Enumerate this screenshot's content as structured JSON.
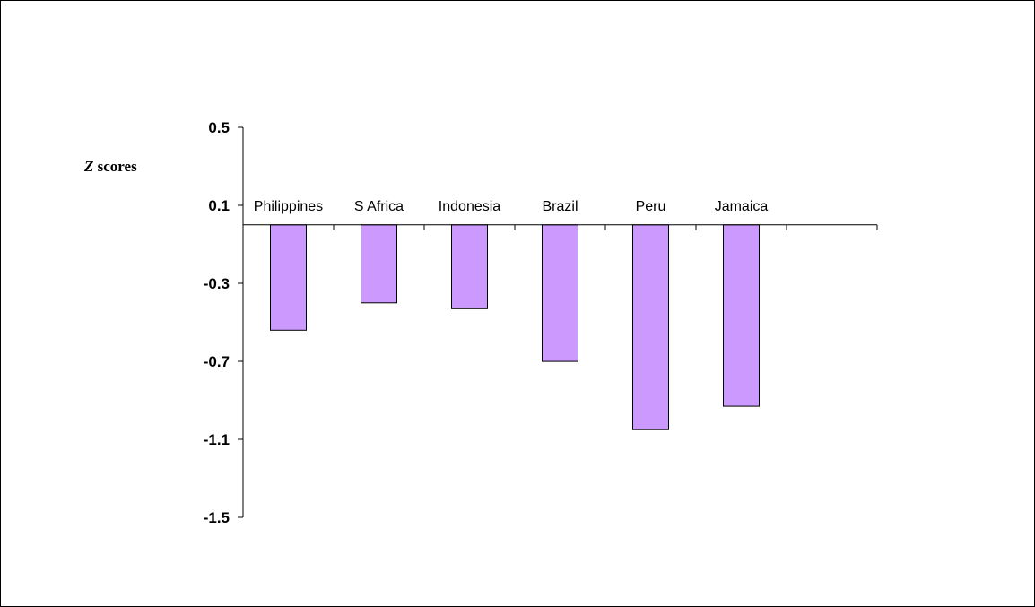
{
  "chart_data": {
    "type": "bar",
    "ylabel_var": "Z",
    "ylabel_rest": " scores",
    "categories": [
      "Philippines",
      "S Africa",
      "Indonesia",
      "Brazil",
      "Peru",
      "Jamaica"
    ],
    "values": [
      -0.54,
      -0.4,
      -0.43,
      -0.7,
      -1.05,
      -0.93
    ],
    "ylim": [
      -1.5,
      0.5
    ],
    "yticks": [
      0.5,
      0.1,
      -0.3,
      -0.7,
      -1.1,
      -1.5
    ],
    "ytick_labels": [
      "0.5",
      "0.1",
      "-0.3",
      "-0.7",
      "-1.1",
      "-1.5"
    ],
    "bar_color": "#cc99ff",
    "bar_stroke": "#000000",
    "grid": false,
    "legend": "none"
  }
}
